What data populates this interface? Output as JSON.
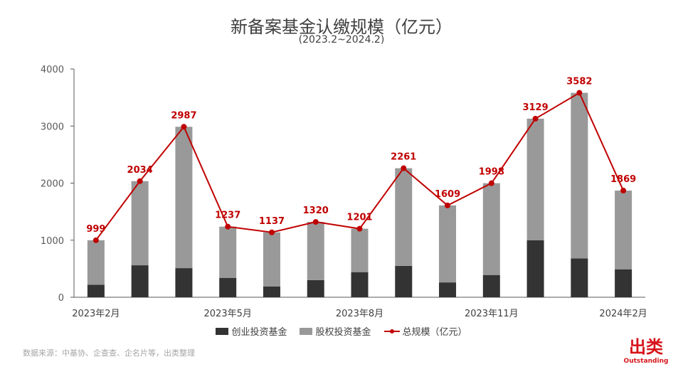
{
  "chart_data": {
    "type": "bar",
    "title": "新备案基金认缴规模（亿元）",
    "subtitle": "(2023.2~2024.2)",
    "x_tick_labels": [
      "2023年2月",
      "",
      "",
      "2023年5月",
      "",
      "",
      "2023年8月",
      "",
      "",
      "2023年11月",
      "",
      "",
      "2024年2月"
    ],
    "series": [
      {
        "name": "创业投资基金",
        "kind": "stacked-bar",
        "color": "#333333",
        "values": [
          220,
          560,
          510,
          340,
          190,
          300,
          440,
          550,
          260,
          390,
          1000,
          680,
          490
        ]
      },
      {
        "name": "股权投资基金",
        "kind": "stacked-bar",
        "color": "#999999",
        "values": [
          779,
          1474,
          2477,
          897,
          947,
          1020,
          761,
          1711,
          1349,
          1608,
          2129,
          2902,
          1379
        ]
      },
      {
        "name": "总规模（亿元）",
        "kind": "line",
        "color": "#c00000",
        "values": [
          999,
          2034,
          2987,
          1237,
          1137,
          1320,
          1201,
          2261,
          1609,
          1998,
          3129,
          3582,
          1869
        ]
      }
    ],
    "ylim": [
      0,
      4000
    ],
    "y_ticks": [
      0,
      1000,
      2000,
      3000,
      4000
    ],
    "grid": false,
    "legend": "bottom"
  },
  "source": "数据来源：中基协、企查查、企名片等，出类整理",
  "logo": {
    "cn": "出类",
    "en": "Outstanding"
  }
}
